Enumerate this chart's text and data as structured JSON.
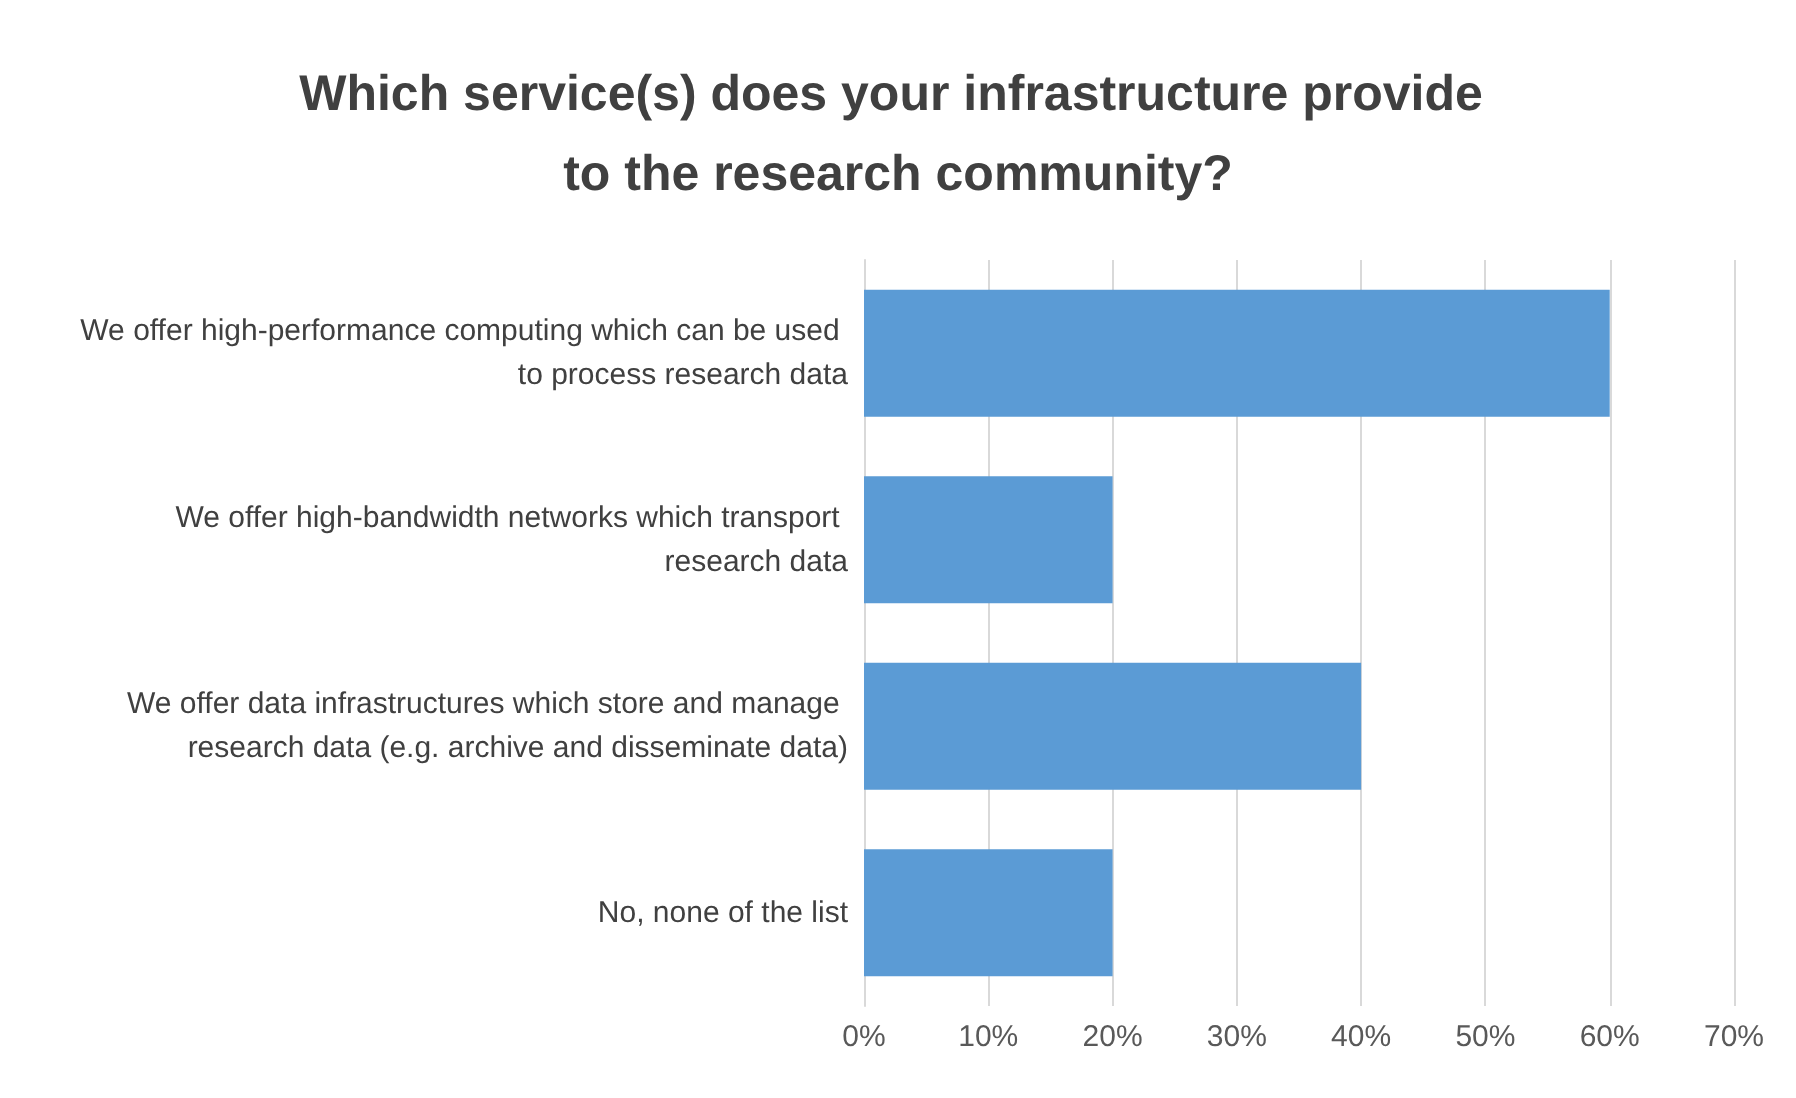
{
  "chart_data": {
    "type": "bar",
    "orientation": "horizontal",
    "title": "Which service(s) does your infrastructure provide to the research community?",
    "categories": [
      "We offer high-performance computing which can be used to process research data",
      "We offer high-bandwidth networks which transport research data",
      "We offer data infrastructures which store and manage research data (e.g. archive and disseminate data)",
      "No, none of the list"
    ],
    "values": [
      60,
      20,
      40,
      20
    ],
    "color": "#5b9bd5",
    "xlim": [
      0,
      70
    ],
    "xticks": [
      {
        "value": 0,
        "label": "0%"
      },
      {
        "value": 10,
        "label": "10%"
      },
      {
        "value": 20,
        "label": "20%"
      },
      {
        "value": 30,
        "label": "30%"
      },
      {
        "value": 40,
        "label": "40%"
      },
      {
        "value": 50,
        "label": "50%"
      },
      {
        "value": 60,
        "label": "60%"
      },
      {
        "value": 70,
        "label": "70%"
      }
    ],
    "grid": "x"
  }
}
